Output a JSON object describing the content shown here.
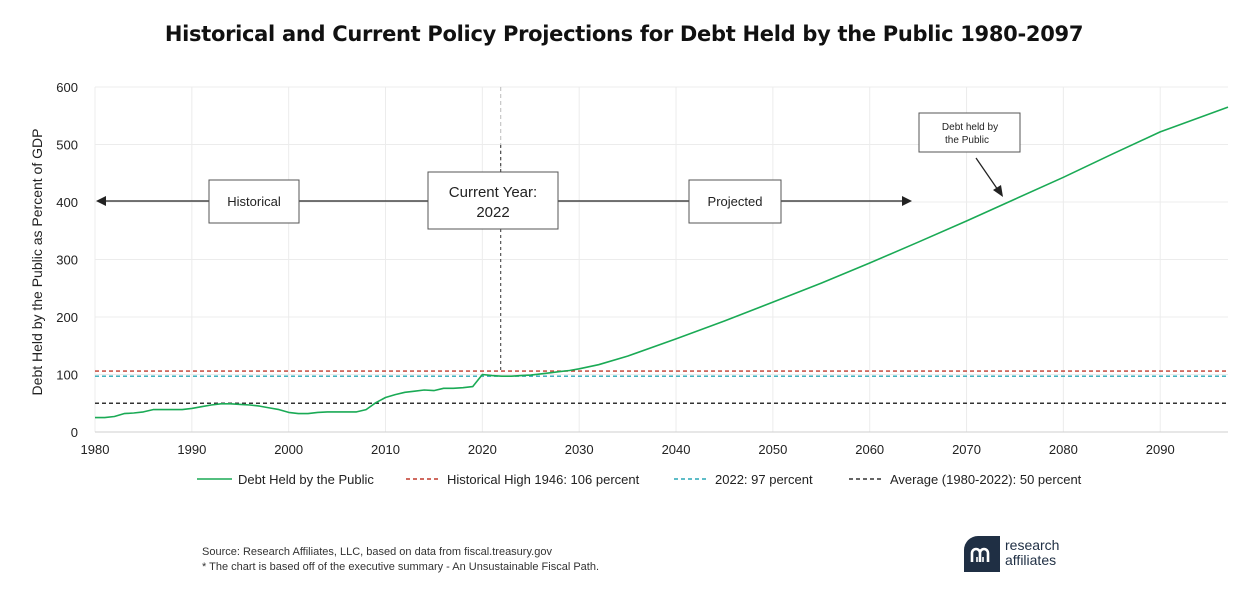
{
  "title": "Historical and Current Policy Projections for Debt Held by the Public 1980-2097",
  "chart_data": {
    "type": "line",
    "title": "Historical and Current Policy Projections for Debt Held by the Public 1980-2097",
    "ylabel": "Debt Held by the Public as Percent of GDP",
    "xlabel": "",
    "xlim": [
      1980,
      2097
    ],
    "ylim": [
      0,
      600
    ],
    "x_ticks": [
      1980,
      1990,
      2000,
      2010,
      2020,
      2030,
      2040,
      2050,
      2060,
      2070,
      2080,
      2090
    ],
    "y_ticks": [
      0,
      100,
      200,
      300,
      400,
      500,
      600
    ],
    "grid": "on",
    "legend_position": "bottom",
    "series": [
      {
        "name": "Debt Held by the Public",
        "style": "solid",
        "color": "#1aaa55",
        "x": [
          1980,
          1981,
          1982,
          1983,
          1984,
          1985,
          1986,
          1987,
          1988,
          1989,
          1990,
          1991,
          1992,
          1993,
          1994,
          1995,
          1996,
          1997,
          1998,
          1999,
          2000,
          2001,
          2002,
          2003,
          2004,
          2005,
          2006,
          2007,
          2008,
          2009,
          2010,
          2011,
          2012,
          2013,
          2014,
          2015,
          2016,
          2017,
          2018,
          2019,
          2020,
          2021,
          2022,
          2023,
          2024,
          2025,
          2026,
          2027,
          2028,
          2029,
          2030,
          2032,
          2035,
          2040,
          2045,
          2050,
          2055,
          2060,
          2065,
          2070,
          2075,
          2080,
          2085,
          2090,
          2097
        ],
        "y": [
          25,
          25,
          27,
          32,
          33,
          35,
          39,
          39,
          39,
          39,
          41,
          44,
          47,
          49,
          49,
          48,
          47,
          45,
          42,
          39,
          34,
          32,
          32,
          34,
          35,
          35,
          35,
          35,
          39,
          51,
          60,
          65,
          69,
          71,
          73,
          72,
          76,
          76,
          77,
          79,
          100,
          98,
          97,
          97,
          98,
          99,
          101,
          103,
          105,
          107,
          110,
          117,
          132,
          162,
          193,
          226,
          259,
          294,
          330,
          367,
          405,
          443,
          483,
          522,
          565
        ]
      },
      {
        "name": "Historical High 1946: 106 percent",
        "style": "dashed",
        "color": "#c0392b",
        "value": 106
      },
      {
        "name": "2022: 97 percent",
        "style": "dashed",
        "color": "#2aa7b5",
        "value": 97
      },
      {
        "name": "Average (1980-2022): 50 percent",
        "style": "dashed",
        "color": "#333333",
        "value": 50
      }
    ],
    "annotations": {
      "historical": "Historical",
      "current_year_line1": "Current Year:",
      "current_year_line2": "2022",
      "current_year_x": 2022,
      "projected": "Projected",
      "callout_line1": "Debt held by",
      "callout_line2": "the Public"
    }
  },
  "source_line1": "Source: Research Affiliates, LLC, based on data from fiscal.treasury.gov",
  "source_line2": "* The chart is based off of the executive summary - An Unsustainable Fiscal Path.",
  "logo": {
    "line1": "research",
    "line2": "affiliates",
    "mark_color": "#1f2f44",
    "icon": "ra-logo-icon"
  }
}
